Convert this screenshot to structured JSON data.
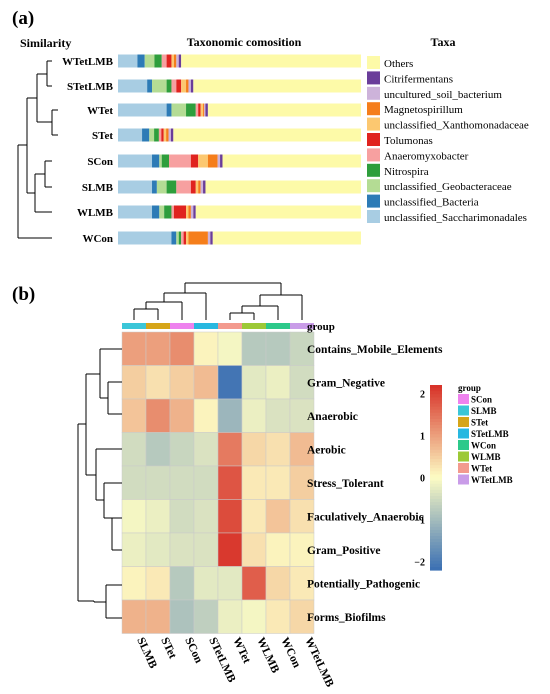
{
  "panel_a_label": "(a)",
  "panel_b_label": "(b)",
  "chart_data": [
    {
      "type": "bar",
      "subtype": "stacked-horizontal-relative-abundance",
      "title": "Taxonomic comosition",
      "left_header": "Similarity",
      "legend_title": "Taxa",
      "categories": [
        "WTetLMB",
        "STetLMB",
        "WTet",
        "STet",
        "SCon",
        "SLMB",
        "WLMB",
        "WCon"
      ],
      "series": [
        {
          "name": "unclassified_Saccharimonadales",
          "color": "#a8cde3",
          "values": [
            0.08,
            0.12,
            0.2,
            0.1,
            0.14,
            0.14,
            0.14,
            0.22
          ]
        },
        {
          "name": "unclassified_Bacteria",
          "color": "#2d7bb6",
          "values": [
            0.03,
            0.02,
            0.02,
            0.03,
            0.03,
            0.02,
            0.03,
            0.02
          ]
        },
        {
          "name": "unclassified_Geobacteraceae",
          "color": "#b4dc94",
          "values": [
            0.04,
            0.06,
            0.06,
            0.02,
            0.01,
            0.04,
            0.02,
            0.01
          ]
        },
        {
          "name": "Nitrospira",
          "color": "#2e9e3c",
          "values": [
            0.03,
            0.02,
            0.04,
            0.02,
            0.03,
            0.04,
            0.03,
            0.01
          ]
        },
        {
          "name": "Anaeromyxobacter",
          "color": "#f7a0a0",
          "values": [
            0.02,
            0.02,
            0.01,
            0.01,
            0.09,
            0.06,
            0.01,
            0.01
          ]
        },
        {
          "name": "Tolumonas",
          "color": "#e0231f",
          "values": [
            0.02,
            0.02,
            0.01,
            0.01,
            0.03,
            0.02,
            0.05,
            0.01
          ]
        },
        {
          "name": "unclassified_Xanthomonadaceae",
          "color": "#fcc870",
          "values": [
            0.01,
            0.02,
            0.01,
            0.01,
            0.04,
            0.01,
            0.01,
            0.01
          ]
        },
        {
          "name": "Magnetospirillum",
          "color": "#f57e1b",
          "values": [
            0.01,
            0.01,
            0.005,
            0.01,
            0.04,
            0.01,
            0.01,
            0.08
          ]
        },
        {
          "name": "uncultured_soil_bacterium",
          "color": "#cdb3da",
          "values": [
            0.01,
            0.01,
            0.005,
            0.01,
            0.01,
            0.01,
            0.01,
            0.01
          ]
        },
        {
          "name": "Citrifermentans",
          "color": "#6a3d9a",
          "values": [
            0.01,
            0.01,
            0.01,
            0.01,
            0.01,
            0.01,
            0.01,
            0.01
          ]
        },
        {
          "name": "Others",
          "color": "#fdfaa8",
          "values": [
            0.74,
            0.69,
            0.63,
            0.78,
            0.57,
            0.64,
            0.68,
            0.61
          ]
        }
      ]
    },
    {
      "type": "heatmap",
      "columns": [
        "SLMB",
        "STet",
        "SCon",
        "STetLMB",
        "WTet",
        "WLMB",
        "WCon",
        "WTetLMB"
      ],
      "rows": [
        "Contains_Mobile_Elements",
        "Gram_Negative",
        "Anaerobic",
        "Aerobic",
        "Stress_Tolerant",
        "Faculatively_Anaerobic",
        "Gram_Positive",
        "Potentially_Pathogenic",
        "Forms_Biofilms"
      ],
      "values": [
        [
          1.0,
          1.0,
          1.2,
          0.1,
          -0.1,
          -0.8,
          -0.8,
          -0.6
        ],
        [
          0.5,
          0.3,
          0.5,
          0.7,
          -2.1,
          -0.3,
          -0.2,
          -0.5
        ],
        [
          0.6,
          1.2,
          0.8,
          0.1,
          -1.1,
          -0.2,
          -0.4,
          -0.4
        ],
        [
          -0.5,
          -0.8,
          -0.6,
          -0.4,
          1.4,
          0.4,
          0.3,
          0.7
        ],
        [
          -0.5,
          -0.5,
          -0.5,
          -0.5,
          1.8,
          0.2,
          0.2,
          0.5
        ],
        [
          -0.1,
          -0.2,
          -0.5,
          -0.4,
          1.9,
          0.2,
          0.6,
          0.3
        ],
        [
          -0.2,
          -0.3,
          -0.4,
          -0.4,
          2.1,
          0.3,
          0.1,
          0.1
        ],
        [
          0.1,
          0.2,
          -0.8,
          -0.3,
          -0.3,
          1.7,
          0.4,
          0.2
        ],
        [
          0.8,
          0.8,
          -0.9,
          -0.7,
          -0.2,
          -0.1,
          0.2,
          0.4
        ]
      ],
      "group_track_label": "group",
      "group_colors": {
        "SCon": "#ee82ee",
        "SLMB": "#3bc6d8",
        "STet": "#d6a518",
        "STetLMB": "#28b8e0",
        "WCon": "#2cc98a",
        "WLMB": "#9cc936",
        "WTet": "#f39a8e",
        "WTetLMB": "#c99ce8"
      },
      "legend_title": "group",
      "legend_order": [
        "SCon",
        "SLMB",
        "STet",
        "STetLMB",
        "WCon",
        "WLMB",
        "WTet",
        "WTetLMB"
      ],
      "colorbar_ticks": [
        "2",
        "1",
        "0",
        "−1",
        "−2"
      ],
      "colorscale": [
        "#3a6fb3",
        "#fdfcc4",
        "#d73027"
      ],
      "value_range": [
        -2.2,
        2.2
      ]
    }
  ]
}
